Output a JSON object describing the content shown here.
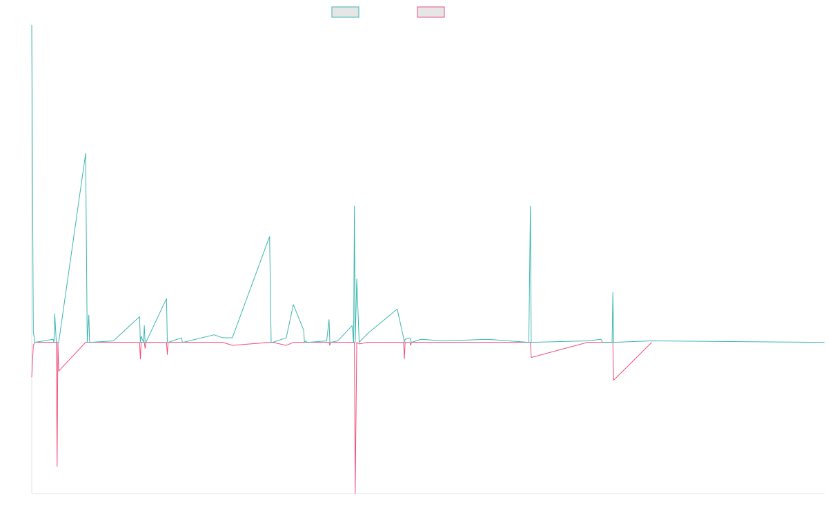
{
  "chart_data": {
    "type": "line",
    "title": "",
    "xlabel": "",
    "ylabel": "",
    "grid": false,
    "legend_position": "top-center",
    "x_range": [
      0,
      1000
    ],
    "ylim": [
      -1.0,
      2.1
    ],
    "x": [
      0,
      2,
      4,
      27,
      28,
      29,
      31,
      32,
      33,
      34,
      68,
      70,
      72,
      73,
      74,
      103,
      136,
      137,
      138,
      141,
      142,
      143,
      144,
      170,
      171,
      172,
      189,
      190,
      191,
      230,
      241,
      253,
      300,
      302,
      304,
      321,
      330,
      343,
      344,
      346,
      347,
      349,
      372,
      375,
      376,
      377,
      386,
      404,
      406,
      407,
      408,
      410,
      413,
      424,
      461,
      469,
      470,
      471,
      477,
      478,
      479,
      491,
      520,
      575,
      627,
      629,
      630,
      701,
      718,
      719,
      720,
      732,
      733,
      734,
      782
    ],
    "series": [
      {
        "name": "",
        "color": "#3ab5b0",
        "values": [
          2.1,
          0.07,
          0,
          0.02,
          0,
          0.19,
          0,
          0,
          0,
          0,
          1.25,
          0,
          0.18,
          0,
          0,
          0.01,
          0.17,
          0,
          0.04,
          0,
          0.11,
          0,
          0,
          0.29,
          0,
          0,
          0.03,
          0,
          0,
          0.05,
          0.03,
          0.03,
          0.7,
          0,
          0,
          0.03,
          0.25,
          0.08,
          0,
          0.01,
          0,
          0,
          0.01,
          0.15,
          0,
          0,
          0.01,
          0.11,
          0,
          0.9,
          0,
          0.42,
          0,
          0.06,
          0.22,
          0.03,
          0,
          0.02,
          0.03,
          0.01,
          0,
          0.02,
          0.01,
          0.02,
          0,
          0.9,
          0,
          0.01,
          0.02,
          0.01,
          0,
          0,
          0.33,
          0,
          0.01
        ]
      },
      {
        "name": "",
        "color": "#ee4d7a",
        "values": [
          -0.23,
          -0.02,
          0,
          0,
          0,
          0,
          0,
          -0.82,
          0,
          -0.19,
          0,
          0,
          0,
          0,
          0,
          0,
          0,
          -0.11,
          0,
          0,
          0,
          -0.04,
          0,
          0,
          -0.08,
          0,
          0,
          0,
          0,
          0,
          0,
          -0.02,
          0,
          0,
          0,
          -0.02,
          0,
          0,
          0,
          0,
          0,
          0,
          0,
          0,
          -0.02,
          0,
          0,
          0,
          0,
          0,
          -1.0,
          0,
          -0.01,
          0,
          0,
          0,
          -0.11,
          0,
          0,
          -0.02,
          0,
          0,
          0,
          0,
          0,
          0,
          -0.1,
          0,
          0,
          0,
          0,
          0,
          0,
          -0.25,
          0
        ]
      }
    ]
  }
}
